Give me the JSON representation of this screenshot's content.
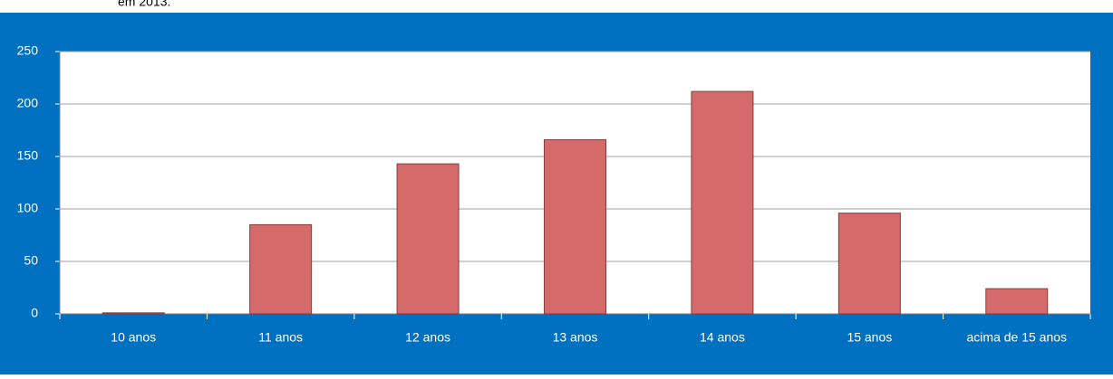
{
  "caption": "em 2013.",
  "chart_data": {
    "type": "bar",
    "categories": [
      "10 anos",
      "11 anos",
      "12 anos",
      "13 anos",
      "14 anos",
      "15 anos",
      "acima de 15 anos"
    ],
    "values": [
      1,
      85,
      143,
      166,
      212,
      96,
      24
    ],
    "color": "#d46a6a",
    "ylim": [
      0,
      250
    ],
    "yticks": [
      0,
      50,
      100,
      150,
      200,
      250
    ],
    "grid": true
  }
}
